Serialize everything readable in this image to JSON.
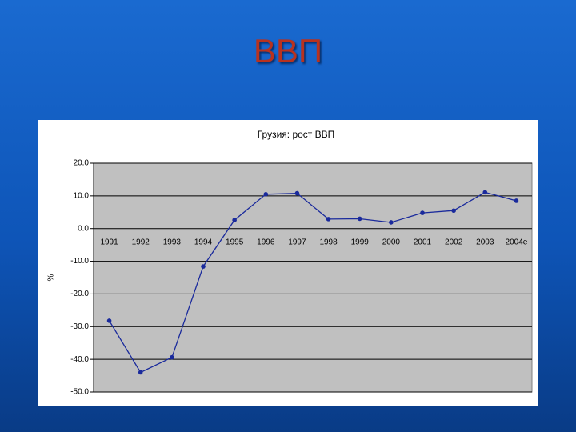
{
  "slide_title": "ВВП",
  "chart_data": {
    "type": "line",
    "title": "Грузия: рост ВВП",
    "y_label": "%",
    "categories": [
      "1991",
      "1992",
      "1993",
      "1994",
      "1995",
      "1996",
      "1997",
      "1998",
      "1999",
      "2000",
      "2001",
      "2002",
      "2003",
      "2004e"
    ],
    "series": [
      {
        "name": "рост ВВП",
        "color": "#1a2a9c",
        "values": [
          -28.2,
          -44,
          -39.4,
          -11.6,
          2.6,
          10.5,
          10.8,
          2.9,
          3.0,
          1.9,
          4.8,
          5.5,
          11.1,
          8.5
        ]
      }
    ],
    "ylim": [
      -50,
      20
    ],
    "yticks": [
      {
        "value": 20,
        "label": "20.0"
      },
      {
        "value": 10,
        "label": "10.0"
      },
      {
        "value": 0,
        "label": "0.0"
      },
      {
        "value": -10,
        "label": "-10.0"
      },
      {
        "value": -20,
        "label": "-20.0"
      },
      {
        "value": -30,
        "label": "-30.0"
      },
      {
        "value": -40,
        "label": "-40.0"
      },
      {
        "value": -50,
        "label": "-50.0"
      }
    ],
    "grid": true,
    "plot_background": "#c0c0c0"
  }
}
